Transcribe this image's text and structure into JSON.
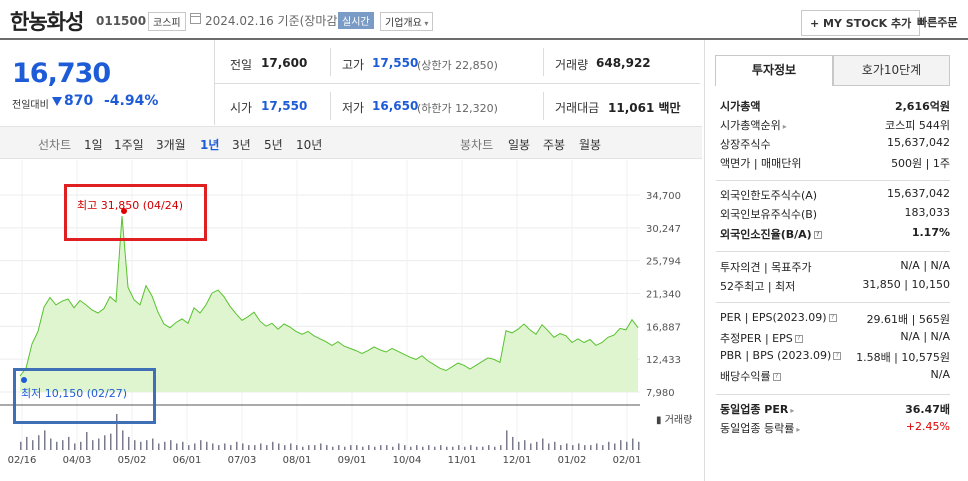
{
  "header": {
    "name": "한농화성",
    "code": "011500",
    "market_badge": "코스피",
    "date": "2024.02.16",
    "date_suffix": "기준(장마감)",
    "realtime_badge": "실시간",
    "company_info": "기업개요",
    "my_stock_button": "+ MY STOCK 추가",
    "quick_order": "빠른주문"
  },
  "price": {
    "current": "16,730",
    "change_label": "전일대비",
    "change": "870",
    "change_pct": "-4.94%"
  },
  "quote": {
    "prev_label": "전일",
    "prev": "17,600",
    "high_label": "고가",
    "high": "17,550",
    "high_limit": "(상한가 22,850)",
    "volume_label": "거래량",
    "volume": "648,922",
    "open_label": "시가",
    "open": "17,550",
    "low_label": "저가",
    "low": "16,650",
    "low_limit": "(하한가 12,320)",
    "amount_label": "거래대금",
    "amount": "11,061",
    "amount_unit": "백만"
  },
  "periods": {
    "line_label": "선차트",
    "line": [
      "1일",
      "1주일",
      "3개월",
      "1년",
      "3년",
      "5년",
      "10년"
    ],
    "active": "1년",
    "candle_label": "봉차트",
    "candle": [
      "일봉",
      "주봉",
      "월봉"
    ]
  },
  "annotations": {
    "high": "최고 31,850 (04/24)",
    "low": "최저 10,150 (02/27)",
    "volume_label": "거래량"
  },
  "chart_data": {
    "type": "area",
    "x_ticks": [
      "02/16",
      "04/03",
      "05/02",
      "06/01",
      "07/03",
      "08/01",
      "09/01",
      "10/04",
      "11/01",
      "12/01",
      "01/02",
      "02/01"
    ],
    "y_ticks": [
      "34,700",
      "30,247",
      "25,794",
      "21,340",
      "16,887",
      "12,433",
      "7,980"
    ],
    "ylim": [
      7980,
      34700
    ],
    "series": [
      {
        "values": [
          10150,
          11200,
          14500,
          16200,
          19500,
          20800,
          19800,
          20300,
          20600,
          19400,
          20400,
          19800,
          19100,
          18700,
          19300,
          20900,
          20200,
          31850,
          22200,
          20500,
          19800,
          22400,
          21000,
          18800,
          17200,
          16700,
          17400,
          17900,
          17300,
          19400,
          18700,
          19800,
          21400,
          21800,
          20900,
          19600,
          18600,
          17700,
          18200,
          18800,
          17600,
          16900,
          17300,
          16500,
          17200,
          16800,
          16200,
          15800,
          16200,
          15600,
          15200,
          14800,
          14300,
          14800,
          14200,
          13900,
          13600,
          13200,
          13600,
          14100,
          13700,
          13400,
          13900,
          13500,
          13100,
          12700,
          12400,
          12900,
          12200,
          11700,
          11200,
          10900,
          11400,
          11900,
          11600,
          11100,
          11600,
          12100,
          12600,
          12400,
          12000,
          16300,
          16000,
          16500,
          17200,
          16400,
          15800,
          17100,
          16300,
          15400,
          15900,
          15600,
          14700,
          15200,
          14700,
          15100,
          14300,
          14700,
          15400,
          15700,
          16600,
          16400,
          17800,
          16700
        ]
      }
    ],
    "volume": [
      5,
      8,
      6,
      9,
      12,
      7,
      5,
      6,
      8,
      4,
      5,
      11,
      6,
      7,
      9,
      10,
      22,
      12,
      8,
      6,
      5,
      6,
      7,
      4,
      5,
      6,
      4,
      5,
      3,
      4,
      6,
      5,
      4,
      3,
      4,
      3,
      5,
      4,
      3,
      3,
      4,
      3,
      5,
      4,
      3,
      4,
      3,
      2,
      3,
      3,
      4,
      3,
      2,
      3,
      2,
      3,
      3,
      2,
      3,
      2,
      3,
      3,
      2,
      4,
      3,
      2,
      3,
      2,
      3,
      2,
      3,
      2,
      2,
      3,
      2,
      3,
      2,
      2,
      3,
      2,
      3,
      12,
      8,
      5,
      6,
      4,
      5,
      7,
      4,
      5,
      3,
      4,
      3,
      4,
      3,
      3,
      4,
      3,
      5,
      4,
      6,
      5,
      7,
      5
    ],
    "grid": true
  },
  "side": {
    "tabs": [
      "투자정보",
      "호가10단계"
    ],
    "rows": [
      {
        "label": "시가총액",
        "value": "2,616억원",
        "bold": true
      },
      {
        "label": "시가총액순위",
        "value": "코스피 544위",
        "arrow": true
      },
      {
        "label": "상장주식수",
        "value": "15,637,042"
      },
      {
        "label": "액면가 | 매매단위",
        "value": "500원 | 1주"
      },
      {
        "label": "외국인한도주식수(A)",
        "value": "15,637,042"
      },
      {
        "label": "외국인보유주식수(B)",
        "value": "183,033"
      },
      {
        "label": "외국인소진율(B/A)",
        "value": "1.17%",
        "bold": true,
        "icon": true
      },
      {
        "label": "투자의견 | 목표주가",
        "value": "N/A | N/A"
      },
      {
        "label": "52주최고 | 최저",
        "value": "31,850 | 10,150"
      },
      {
        "label": "PER | EPS(2023.09)",
        "value": "29.61배 | 565원",
        "icon": true
      },
      {
        "label": "추정PER | EPS",
        "value": "N/A | N/A",
        "icon": true
      },
      {
        "label": "PBR | BPS (2023.09)",
        "value": "1.58배 | 10,575원",
        "icon": true
      },
      {
        "label": "배당수익률",
        "value": "N/A",
        "icon": true
      },
      {
        "label": "동일업종 PER",
        "value": "36.47배",
        "bold": true,
        "arrow": true
      },
      {
        "label": "동일업종 등락률",
        "value": "+2.45%",
        "red": true,
        "arrow": true
      }
    ]
  }
}
